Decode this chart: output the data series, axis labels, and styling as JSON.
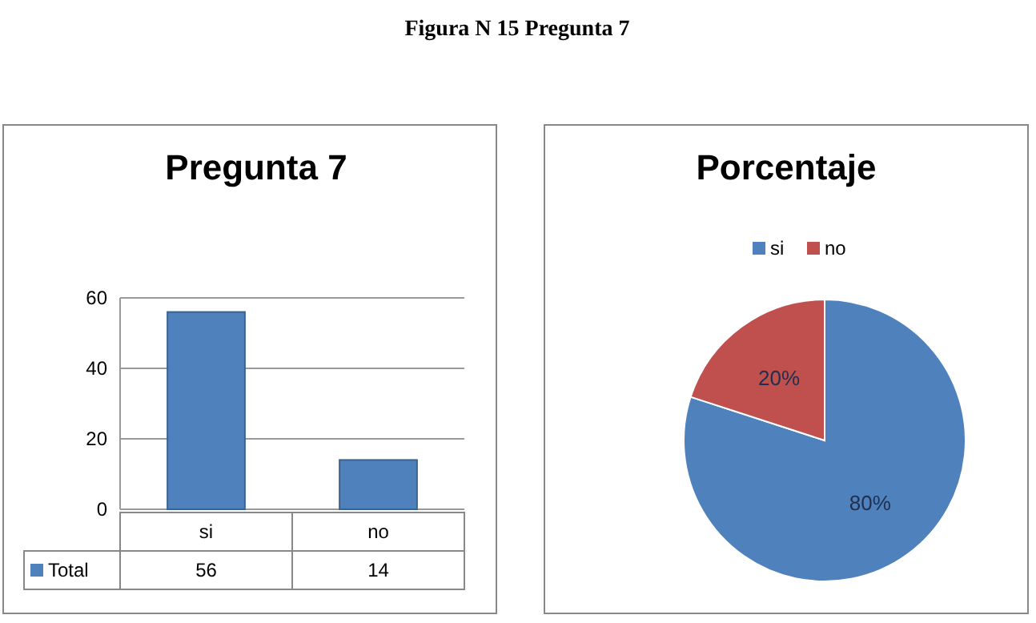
{
  "chart_data": [
    {
      "type": "bar",
      "title": "Pregunta 7",
      "annotations": [
        "Figura N 15 Pregunta 7"
      ],
      "categories": [
        "si",
        "no"
      ],
      "series": [
        {
          "name": "Total",
          "color": "#4f81bd",
          "values": [
            56,
            14
          ]
        }
      ],
      "ylim": [
        0,
        60
      ],
      "yticks": [
        0,
        20,
        40,
        60
      ],
      "grid": "y",
      "data_labels": true,
      "legend": "bottom"
    },
    {
      "type": "pie",
      "title": "Porcentaje",
      "categories": [
        "si",
        "no"
      ],
      "values": [
        80,
        20
      ],
      "colors": [
        "#4f81bd",
        "#c0504d"
      ],
      "value_labels": [
        "80%",
        "20%"
      ],
      "legend": "top"
    }
  ]
}
